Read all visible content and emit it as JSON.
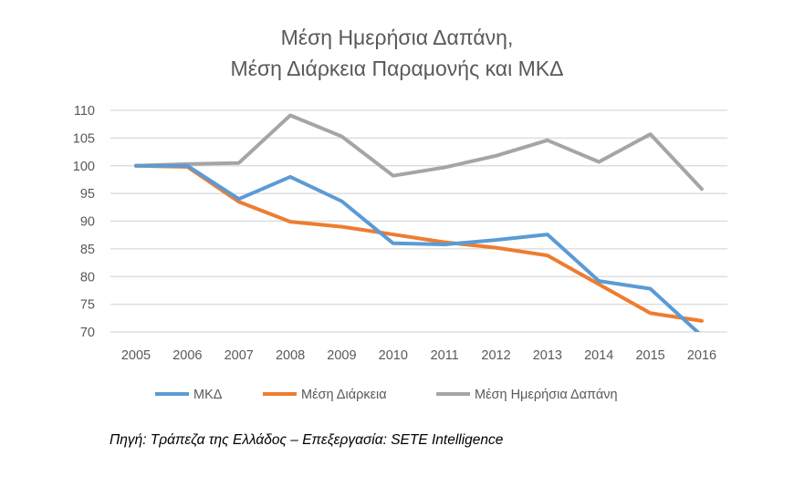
{
  "chart_data": {
    "type": "line",
    "title": [
      "Μέση Ημερήσια Δαπάνη,",
      "Μέση Διάρκεια Παραμονής και ΜΚΔ"
    ],
    "xlabel": "",
    "ylabel": "",
    "categories": [
      "2005",
      "2006",
      "2007",
      "2008",
      "2009",
      "2010",
      "2011",
      "2012",
      "2013",
      "2014",
      "2015",
      "2016"
    ],
    "ylim": [
      70,
      110
    ],
    "yticks": [
      70,
      75,
      80,
      85,
      90,
      95,
      100,
      105,
      110
    ],
    "grid": true,
    "legend_position": "bottom",
    "series": [
      {
        "name": "ΜΚΔ",
        "color": "#5B9BD5",
        "values": [
          100,
          100,
          94,
          98,
          93.6,
          86,
          85.8,
          86.6,
          87.6,
          79.2,
          77.8,
          69.3
        ]
      },
      {
        "name": "Μέση Διάρκεια",
        "color": "#ED7D31",
        "values": [
          100,
          99.8,
          93.5,
          89.9,
          89,
          87.6,
          86.2,
          85.2,
          83.8,
          78.6,
          73.4,
          72
        ]
      },
      {
        "name": "Μέση Ημερήσια Δαπάνη",
        "color": "#A5A5A5",
        "values": [
          100,
          100.3,
          100.5,
          109.1,
          105.3,
          98.2,
          99.7,
          101.8,
          104.6,
          100.7,
          105.7,
          95.8
        ]
      }
    ]
  },
  "source": "Πηγή: Τράπεζα της Ελλάδος – Επεξεργασία: SETE Intelligence"
}
